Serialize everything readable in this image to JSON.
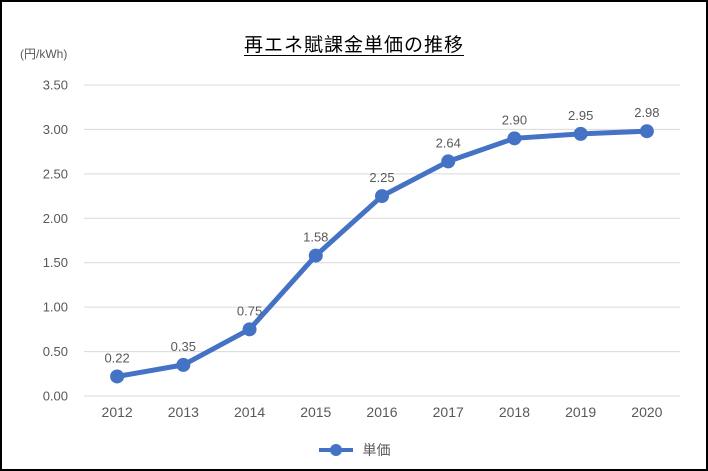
{
  "chart_data": {
    "type": "line",
    "title": "再エネ賦課金単価の推移",
    "unit_label": "(円/kWh)",
    "categories": [
      "2012",
      "2013",
      "2014",
      "2015",
      "2016",
      "2017",
      "2018",
      "2019",
      "2020"
    ],
    "series": [
      {
        "name": "単価",
        "values": [
          0.22,
          0.35,
          0.75,
          1.58,
          2.25,
          2.64,
          2.9,
          2.95,
          2.98
        ],
        "color": "#4472C4"
      }
    ],
    "data_labels": [
      "0.22",
      "0.35",
      "0.75",
      "1.58",
      "2.25",
      "2.64",
      "2.90",
      "2.95",
      "2.98"
    ],
    "ylim": [
      0,
      3.5
    ],
    "ytick_step": 0.5,
    "ytick_labels": [
      "0.00",
      "0.50",
      "1.00",
      "1.50",
      "2.00",
      "2.50",
      "3.00",
      "3.50"
    ],
    "grid": true,
    "legend_position": "bottom",
    "colors": {
      "grid_line": "#D9D9D9",
      "tick_text": "#595959",
      "data_label_text": "#595959",
      "title_text": "#000000",
      "background": "#ffffff",
      "frame_border": "#000000"
    }
  }
}
